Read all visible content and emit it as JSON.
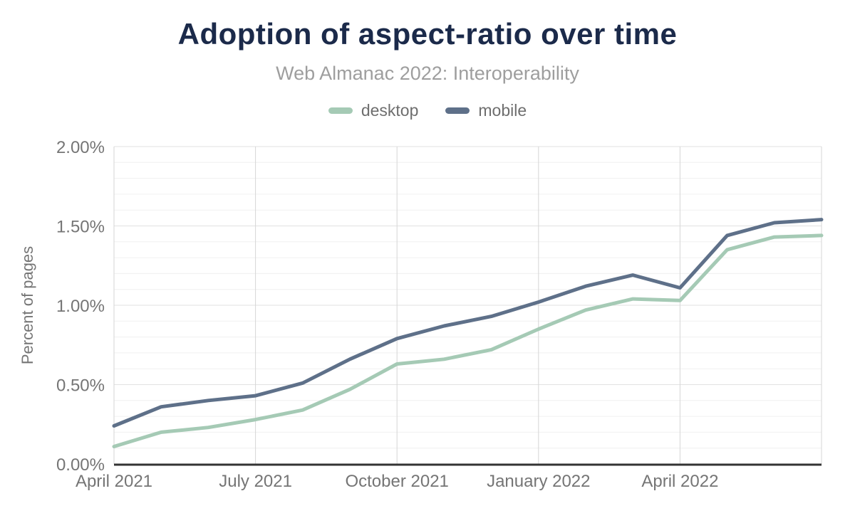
{
  "header": {
    "title": "Adoption of aspect-ratio over time",
    "subtitle": "Web Almanac 2022: Interoperability"
  },
  "chart_data": {
    "type": "line",
    "title": "Adoption of aspect-ratio over time",
    "subtitle": "Web Almanac 2022: Interoperability",
    "xlabel": "",
    "ylabel": "Percent of pages",
    "x": [
      "April 2021",
      "May 2021",
      "June 2021",
      "July 2021",
      "August 2021",
      "September 2021",
      "October 2021",
      "November 2021",
      "December 2021",
      "January 2022",
      "February 2022",
      "March 2022",
      "April 2022",
      "May 2022",
      "June 2022",
      "July 2022"
    ],
    "x_tick_labels": [
      "April 2021",
      "July 2021",
      "October 2021",
      "January 2022",
      "April 2022"
    ],
    "x_tick_indices": [
      0,
      3,
      6,
      9,
      12
    ],
    "x_gridline_indices": [
      0,
      3,
      6,
      9,
      12,
      15
    ],
    "y_tick_labels": [
      "0.00%",
      "0.50%",
      "1.00%",
      "1.50%",
      "2.00%"
    ],
    "y_tick_values": [
      0,
      0.5,
      1.0,
      1.5,
      2.0
    ],
    "ylim": [
      0,
      2.0
    ],
    "y_minor_step": 0.1,
    "y_major_step": 0.5,
    "grid": true,
    "legend_position": "top",
    "unit": "percent of pages",
    "series": [
      {
        "name": "desktop",
        "color": "#a5cab5",
        "values": [
          0.11,
          0.2,
          0.23,
          0.28,
          0.34,
          0.47,
          0.63,
          0.66,
          0.72,
          0.85,
          0.97,
          1.04,
          1.03,
          1.35,
          1.43,
          1.44
        ]
      },
      {
        "name": "mobile",
        "color": "#5e7089",
        "values": [
          0.24,
          0.36,
          0.4,
          0.43,
          0.51,
          0.66,
          0.79,
          0.87,
          0.93,
          1.02,
          1.12,
          1.19,
          1.11,
          1.44,
          1.52,
          1.54
        ]
      }
    ]
  },
  "colors": {
    "title": "#1b2a4a",
    "subtitle": "#9e9e9e",
    "tick_label": "#757575",
    "axis_label": "#757575",
    "legend_text": "#6e6e6e",
    "axis_line": "#333333",
    "grid_minor": "#f0f0f0",
    "grid_major": "#e2e2e2",
    "grid_vertical": "#d6d6d6"
  }
}
